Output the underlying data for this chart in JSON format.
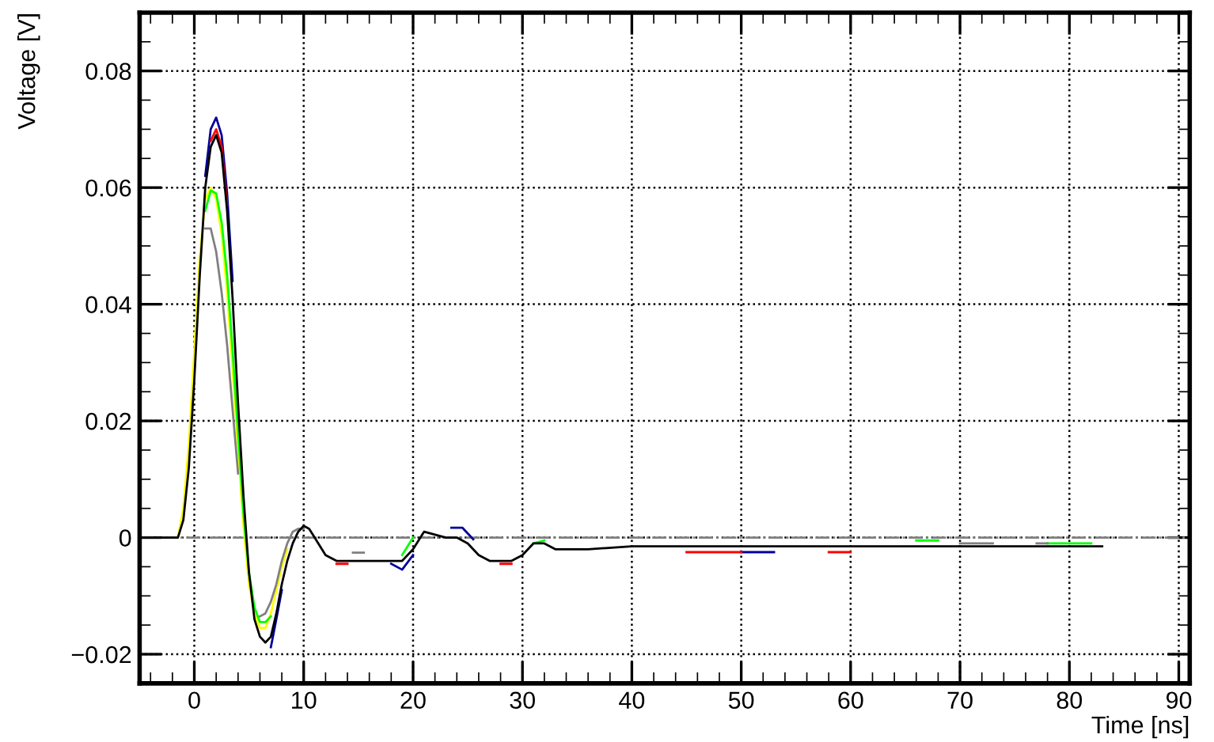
{
  "chart_data": {
    "type": "line",
    "xlabel": "Time [ns]",
    "ylabel": "Voltage [V]",
    "x": [
      -5,
      -1.5,
      -1,
      -0.5,
      0,
      0.5,
      1,
      1.5,
      2,
      2.5,
      3,
      3.5,
      4,
      4.5,
      5,
      5.5,
      6,
      6.5,
      7,
      7.5,
      8,
      8.5,
      9,
      9.5,
      10,
      10.5,
      11,
      12,
      13,
      14,
      15,
      16,
      17,
      18,
      19,
      20,
      21,
      22,
      23,
      24,
      25,
      26,
      27,
      28,
      29,
      30,
      31,
      32,
      33,
      34,
      36,
      40,
      45,
      50,
      60,
      70,
      83
    ],
    "series": [
      {
        "color": "#000099",
        "x": [
          1,
          1.5,
          2,
          2.5,
          3,
          3.5,
          4.5,
          6.5,
          7,
          7.5,
          8,
          9,
          17,
          18,
          19,
          20,
          21,
          22.5,
          23.5,
          24.5,
          25.5,
          26,
          40,
          45,
          50,
          53
        ],
        "values": [
          0.062,
          0.07,
          0.072,
          0.069,
          0.059,
          0.044,
          null,
          null,
          -0.0188,
          -0.014,
          -0.009,
          null,
          null,
          -0.0045,
          -0.0055,
          -0.003,
          null,
          null,
          0.0017,
          0.0017,
          -0.0003,
          null,
          null,
          null,
          -0.0025,
          -0.0025
        ]
      },
      {
        "color": "#ff0000",
        "x": [
          1.5,
          2,
          2.5,
          3,
          4,
          12,
          13,
          14,
          15,
          27,
          28,
          29,
          30,
          40,
          45,
          50,
          55,
          57,
          58,
          60
        ],
        "values": [
          0.068,
          0.07,
          0.067,
          0.057,
          null,
          null,
          -0.0045,
          -0.0045,
          null,
          null,
          -0.0045,
          -0.0045,
          null,
          null,
          -0.0025,
          -0.0025,
          null,
          null,
          -0.0025,
          -0.0025
        ]
      },
      {
        "color": "#ffff00",
        "x": [
          -1.5,
          -1,
          -0.5,
          0,
          0.5,
          1,
          1.5,
          2,
          2.5,
          3,
          3.5,
          4,
          4.5,
          5,
          5.5,
          6,
          6.5,
          7,
          7.5,
          8,
          8.5
        ],
        "values": [
          0,
          0.005,
          0.016,
          0.032,
          0.048,
          0.058,
          0.06,
          0.058,
          0.052,
          0.042,
          0.029,
          0.015,
          0.002,
          -0.008,
          -0.013,
          -0.0155,
          -0.0155,
          -0.013,
          -0.009,
          -0.005,
          -0.002
        ]
      },
      {
        "color": "#00ff00",
        "x": [
          1,
          1.5,
          2,
          2.5,
          3,
          3.5,
          4,
          4.5,
          5,
          5.5,
          6,
          6.5,
          7,
          7.5,
          18,
          19,
          20,
          21,
          30,
          31,
          32,
          33,
          65,
          66,
          68,
          69,
          77,
          78,
          82
        ],
        "values": [
          0.056,
          0.0595,
          0.059,
          0.054,
          0.045,
          0.032,
          0.018,
          0.004,
          -0.006,
          -0.012,
          -0.0145,
          -0.0145,
          -0.0135,
          null,
          null,
          -0.003,
          0,
          null,
          null,
          -0.001,
          -0.0005,
          null,
          null,
          -0.0005,
          -0.0005,
          null,
          null,
          -0.001,
          -0.001
        ]
      },
      {
        "color": "#808080",
        "x": [
          1,
          1.5,
          2,
          2.5,
          3,
          3.5,
          4,
          4.5,
          6,
          6.5,
          7,
          7.5,
          8,
          8.5,
          9,
          9.5,
          10,
          11,
          14.5,
          15.5,
          16,
          70,
          73,
          74,
          76,
          77,
          78
        ],
        "values": [
          0.053,
          0.053,
          0.049,
          0.042,
          0.033,
          0.022,
          0.011,
          null,
          -0.0135,
          -0.013,
          -0.011,
          -0.008,
          -0.004,
          -0.001,
          0.001,
          0.0015,
          0.0015,
          null,
          -0.0026,
          -0.0026,
          null,
          -0.001,
          -0.001,
          null,
          null,
          -0.001,
          -0.001
        ]
      },
      {
        "color": "#000000",
        "values": [
          0,
          0,
          0.003,
          0.012,
          0.027,
          0.045,
          0.06,
          0.067,
          0.069,
          0.066,
          0.056,
          0.041,
          0.023,
          0.007,
          -0.006,
          -0.014,
          -0.017,
          -0.018,
          -0.017,
          -0.013,
          -0.008,
          -0.004,
          -0.001,
          0.001,
          0.002,
          0.0015,
          0,
          -0.003,
          -0.004,
          -0.004,
          -0.004,
          -0.004,
          -0.004,
          -0.004,
          -0.004,
          -0.002,
          0.001,
          0.0005,
          0,
          0,
          -0.001,
          -0.003,
          -0.004,
          -0.004,
          -0.004,
          -0.003,
          -0.001,
          -0.001,
          -0.002,
          -0.002,
          -0.002,
          -0.0015,
          -0.0015,
          -0.0015,
          -0.0015,
          -0.0015,
          -0.0015
        ]
      }
    ],
    "xlim": [
      -5,
      91
    ],
    "ylim": [
      -0.025,
      0.09
    ],
    "xticks": [
      0,
      10,
      20,
      30,
      40,
      50,
      60,
      70,
      80,
      90
    ],
    "yticks": [
      {
        "value": -0.02,
        "label": "−0.02"
      },
      0,
      0.02,
      0.04,
      0.06,
      0.08
    ],
    "ref_lines": [
      {
        "axis": "y",
        "value": 0,
        "color": "#808080",
        "line_style": "dashed"
      }
    ],
    "grid": true,
    "marker": "none",
    "line_style": "solid"
  }
}
